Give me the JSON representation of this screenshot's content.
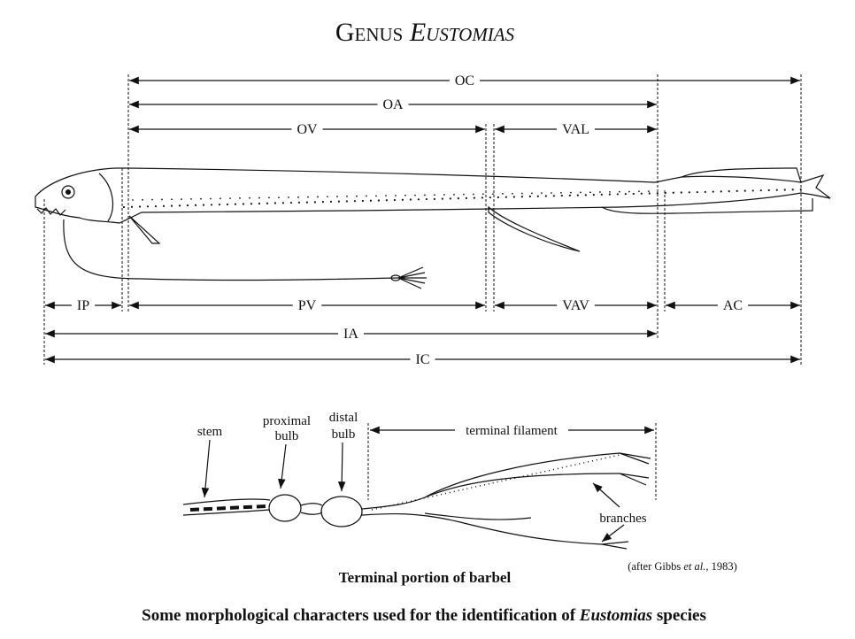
{
  "title": {
    "genus": "Genus",
    "name": "Eustomias"
  },
  "measurements": [
    "OC",
    "OA",
    "OV",
    "VAL",
    "IP",
    "PV",
    "VAV",
    "AC",
    "IA",
    "IC"
  ],
  "barbel": {
    "stem": "stem",
    "proximal_bulb": [
      "proximal",
      "bulb"
    ],
    "distal_bulb": [
      "distal",
      "bulb"
    ],
    "terminal_filament": "terminal filament",
    "branches": "branches",
    "credit": [
      "(after Gibbs ",
      "et al.",
      ", 1983)"
    ],
    "caption": "Terminal portion of barbel"
  },
  "caption": [
    "Some morphological characters used for the identification of ",
    "Eustomias",
    " species"
  ]
}
